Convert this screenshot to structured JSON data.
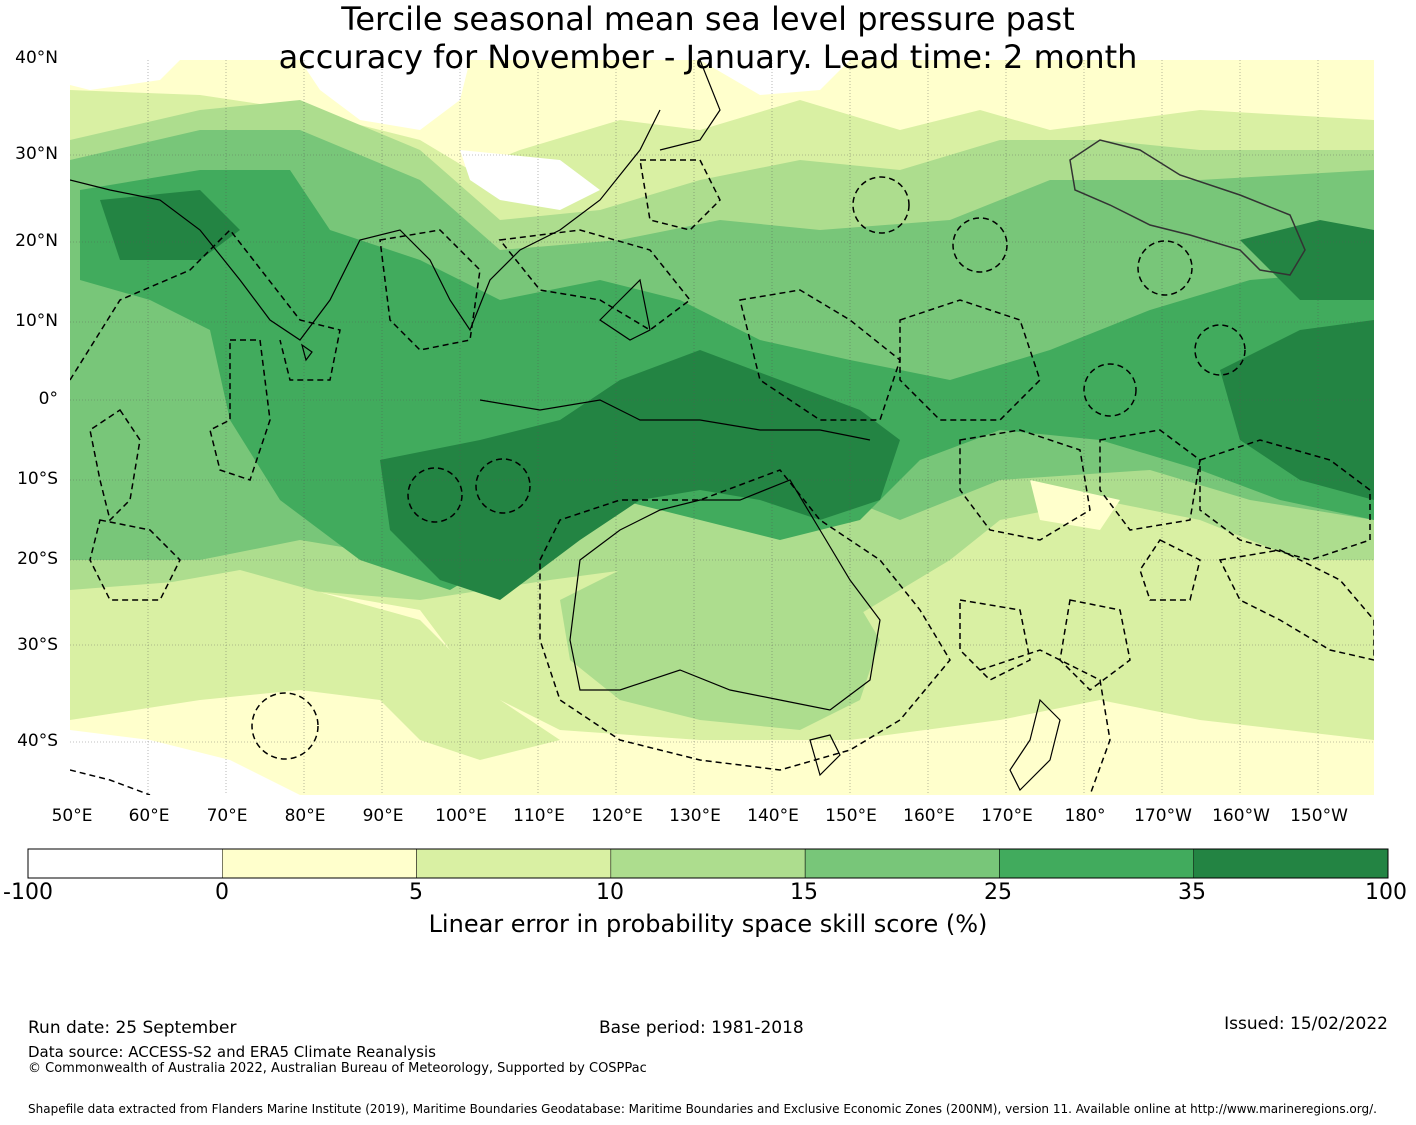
{
  "title": {
    "line1": "Tercile seasonal mean sea level pressure past",
    "line2": "accuracy for November - January. Lead time: 2 month"
  },
  "map": {
    "lat_labels": [
      "40°N",
      "30°N",
      "20°N",
      "10°N",
      "0°",
      "10°S",
      "20°S",
      "30°S",
      "40°S"
    ],
    "lon_labels": [
      "50°E",
      "60°E",
      "70°E",
      "80°E",
      "90°E",
      "100°E",
      "110°E",
      "120°E",
      "130°E",
      "140°E",
      "150°E",
      "160°E",
      "170°E",
      "180°",
      "170°W",
      "160°W",
      "150°W"
    ],
    "extent": {
      "lon_min": 50,
      "lon_max": 217,
      "lat_min": -45,
      "lat_max": 40
    }
  },
  "colorbar": {
    "ticks": [
      "-100",
      "0",
      "5",
      "10",
      "15",
      "25",
      "35",
      "100"
    ],
    "colors": [
      "#ffffff",
      "#ffffcc",
      "#d9f0a3",
      "#addd8e",
      "#78c679",
      "#41ab5d",
      "#238443"
    ],
    "label": "Linear error in probability space skill score (%)"
  },
  "footer": {
    "run_date": "Run date: 25 September",
    "base_period": "Base period: 1981-2018",
    "issued": "Issued: 15/02/2022",
    "data_source": "Data source: ACCESS-S2 and ERA5 Climate Reanalysis",
    "copyright": "© Commonwealth of Australia 2022, Australian Bureau of Meteorology, Supported by COSPPac",
    "shapefile": "Shapefile data extracted from Flanders Marine Institute (2019), Maritime Boundaries Geodatabase: Maritime Boundaries and Exclusive Economic Zones (200NM), version 11. Available online at http://www.marineregions.org/."
  }
}
